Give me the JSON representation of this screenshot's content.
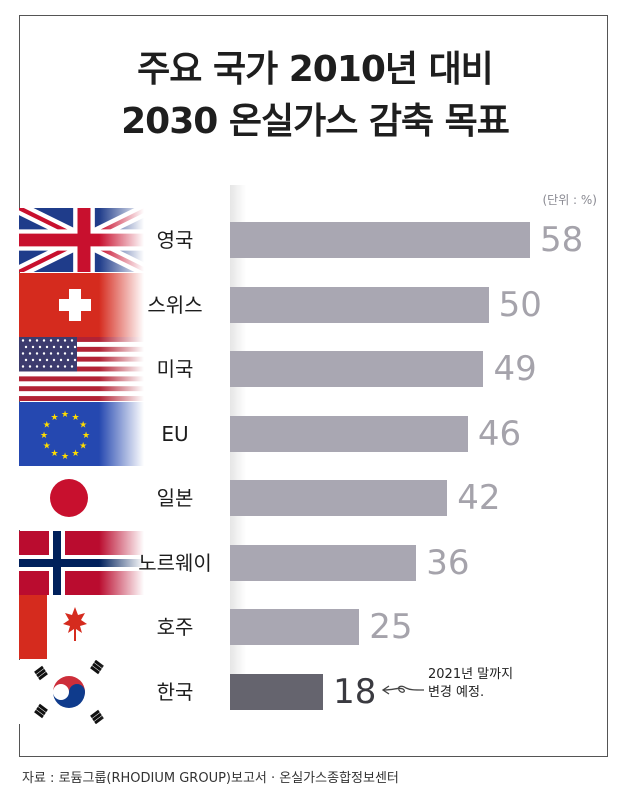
{
  "title": {
    "line1": "주요 국가 2010년 대비",
    "line2": "2030 온실가스 감축 목표"
  },
  "unit_label": "(단위 : %)",
  "chart_data": {
    "type": "bar",
    "orientation": "horizontal",
    "categories": [
      "영국",
      "스위스",
      "미국",
      "EU",
      "일본",
      "노르웨이",
      "호주",
      "한국"
    ],
    "values": [
      58,
      50,
      49,
      46,
      42,
      36,
      25,
      18
    ],
    "highlight": "한국",
    "xlim": [
      0,
      62
    ],
    "colors": {
      "bar": "#a9a7b2",
      "highlight_bar": "#65646e",
      "value_text": "#a5a3ab",
      "highlight_text": "#3a3a40"
    },
    "flag_icons": [
      "uk-flag-icon",
      "switzerland-flag-icon",
      "usa-flag-icon",
      "eu-flag-icon",
      "japan-flag-icon",
      "norway-flag-icon",
      "australia-flag-icon",
      "korea-flag-icon"
    ]
  },
  "note": {
    "line1": "2021년 말까지",
    "line2": "변경 예정."
  },
  "source": "자료 : 로듐그룹(RHODIUM GROUP)보고서 · 온실가스종합정보센터"
}
